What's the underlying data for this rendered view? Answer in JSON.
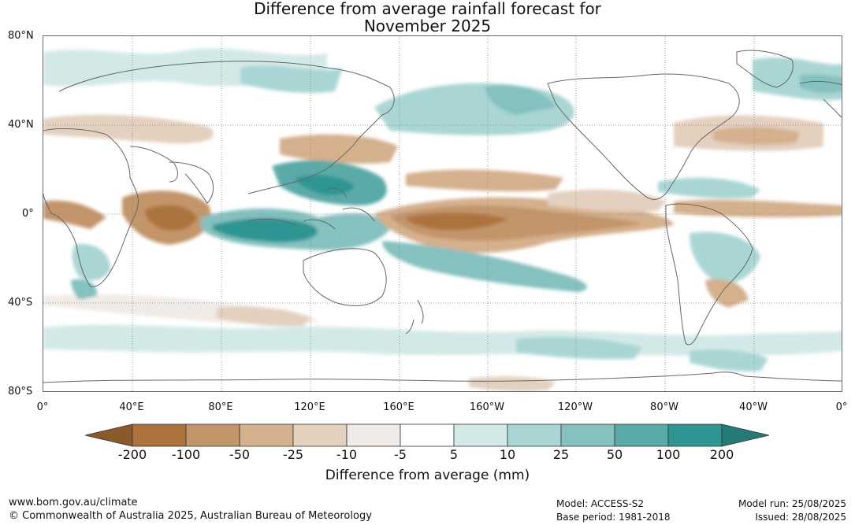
{
  "title": {
    "line1": "Difference from average rainfall forecast for",
    "line2": "November 2025"
  },
  "axes": {
    "lat_labels": [
      "80°N",
      "40°N",
      "0°",
      "40°S",
      "80°S"
    ],
    "lon_labels": [
      "0°",
      "40°E",
      "80°E",
      "120°E",
      "160°E",
      "160°W",
      "120°W",
      "80°W",
      "40°W",
      "0°"
    ]
  },
  "legend": {
    "title": "Difference from average (mm)",
    "ticks": [
      "-200",
      "-100",
      "-50",
      "-25",
      "-10",
      "-5",
      "5",
      "10",
      "25",
      "50",
      "100",
      "200"
    ],
    "colors": [
      "#8a5a2b",
      "#ad733c",
      "#c2956a",
      "#d4b08d",
      "#e3d0bf",
      "#f0ebe6",
      "#ffffff",
      "#d3e9e8",
      "#a9d6d4",
      "#84c1bf",
      "#5aaaa8",
      "#2f9592",
      "#237a77"
    ]
  },
  "footer": {
    "website": "www.bom.gov.au/climate",
    "copyright": "© Commonwealth of Australia 2025, Australian Bureau of Meteorology",
    "model": "Model: ACCESS-S2",
    "base_period": "Base period: 1981-2018",
    "model_run": "Model run: 25/08/2025",
    "issued": "Issued: 28/08/2025"
  }
}
